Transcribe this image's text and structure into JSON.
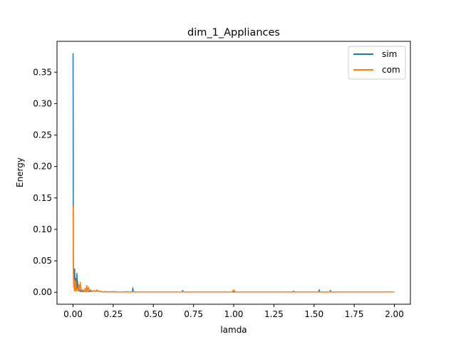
{
  "chart_data": {
    "type": "line",
    "title": "dim_1_Appliances",
    "xlabel": "lamda",
    "ylabel": "Energy",
    "xlim": [
      -0.1,
      2.1
    ],
    "ylim": [
      -0.019,
      0.399
    ],
    "xticks": [
      0.0,
      0.25,
      0.5,
      0.75,
      1.0,
      1.25,
      1.5,
      1.75,
      2.0
    ],
    "xtick_labels": [
      "0.00",
      "0.25",
      "0.50",
      "0.75",
      "1.00",
      "1.25",
      "1.50",
      "1.75",
      "2.00"
    ],
    "yticks": [
      0.0,
      0.05,
      0.1,
      0.15,
      0.2,
      0.25,
      0.3,
      0.35
    ],
    "ytick_labels": [
      "0.00",
      "0.05",
      "0.10",
      "0.15",
      "0.20",
      "0.25",
      "0.30",
      "0.35"
    ],
    "grid": false,
    "legend_position": "top-right",
    "series": [
      {
        "name": "sim",
        "color": "#1f77b4",
        "x": [
          0.0,
          0.002,
          0.004,
          0.006,
          0.008,
          0.01,
          0.012,
          0.014,
          0.016,
          0.018,
          0.02,
          0.022,
          0.024,
          0.026,
          0.028,
          0.03,
          0.034,
          0.038,
          0.042,
          0.046,
          0.05,
          0.055,
          0.06,
          0.065,
          0.07,
          0.075,
          0.08,
          0.09,
          0.1,
          0.11,
          0.12,
          0.13,
          0.14,
          0.15,
          0.16,
          0.17,
          0.18,
          0.2,
          0.22,
          0.25,
          0.28,
          0.3,
          0.33,
          0.36,
          0.37,
          0.372,
          0.375,
          0.38,
          0.4,
          0.45,
          0.5,
          0.55,
          0.6,
          0.65,
          0.68,
          0.682,
          0.685,
          0.69,
          0.75,
          0.8,
          0.9,
          1.0,
          1.1,
          1.2,
          1.3,
          1.37,
          1.372,
          1.375,
          1.38,
          1.45,
          1.5,
          1.53,
          1.532,
          1.535,
          1.54,
          1.6,
          1.602,
          1.605,
          1.61,
          1.7,
          1.8,
          1.9,
          2.0
        ],
        "y": [
          0.38,
          0.05,
          0.02,
          0.008,
          0.012,
          0.037,
          0.01,
          0.004,
          0.022,
          0.003,
          0.02,
          0.004,
          0.03,
          0.006,
          0.018,
          0.003,
          0.006,
          0.002,
          0.004,
          0.001,
          0.003,
          0.001,
          0.004,
          0.001,
          0.002,
          0.004,
          0.001,
          0.002,
          0.001,
          0.002,
          0.001,
          0.003,
          0.001,
          0.003,
          0.001,
          0.002,
          0.0005,
          0.001,
          0.0005,
          0.001,
          0.0005,
          0.0005,
          0.0008,
          0.0005,
          0.0005,
          0.007,
          0.001,
          0.0005,
          0.0005,
          0.0005,
          0.0005,
          0.0005,
          0.0005,
          0.0005,
          0.0005,
          0.003,
          0.0005,
          0.0005,
          0.0005,
          0.0005,
          0.0005,
          0.0005,
          0.0005,
          0.0005,
          0.0005,
          0.0005,
          0.002,
          0.0005,
          0.0005,
          0.0005,
          0.0005,
          0.0005,
          0.004,
          0.0005,
          0.0005,
          0.0005,
          0.003,
          0.0005,
          0.0005,
          0.0005,
          0.0005,
          0.0005,
          0.0005
        ]
      },
      {
        "name": "com",
        "color": "#ff7f0e",
        "x": [
          0.0,
          0.002,
          0.004,
          0.006,
          0.008,
          0.01,
          0.012,
          0.014,
          0.016,
          0.018,
          0.02,
          0.025,
          0.03,
          0.035,
          0.04,
          0.045,
          0.05,
          0.055,
          0.06,
          0.065,
          0.07,
          0.075,
          0.08,
          0.085,
          0.09,
          0.095,
          0.1,
          0.11,
          0.12,
          0.13,
          0.14,
          0.15,
          0.16,
          0.17,
          0.18,
          0.2,
          0.25,
          0.3,
          0.4,
          0.5,
          0.6,
          0.7,
          0.8,
          0.9,
          0.99,
          1.0,
          1.01,
          1.1,
          1.2,
          1.3,
          1.4,
          1.5,
          1.6,
          1.7,
          1.8,
          1.9,
          2.0
        ],
        "y": [
          0.137,
          0.03,
          0.008,
          0.015,
          0.002,
          0.02,
          0.004,
          0.012,
          0.002,
          0.018,
          0.004,
          0.006,
          0.002,
          0.012,
          0.003,
          0.016,
          0.002,
          0.004,
          0.001,
          0.003,
          0.001,
          0.006,
          0.001,
          0.011,
          0.002,
          0.008,
          0.003,
          0.004,
          0.001,
          0.003,
          0.001,
          0.004,
          0.001,
          0.002,
          0.0005,
          0.001,
          0.0005,
          0.0005,
          0.0005,
          0.0005,
          0.0005,
          0.0005,
          0.0005,
          0.0005,
          0.0005,
          0.004,
          0.0005,
          0.0005,
          0.0005,
          0.0005,
          0.0005,
          0.0005,
          0.0005,
          0.0005,
          0.0005,
          0.0005,
          0.0005
        ]
      }
    ]
  }
}
